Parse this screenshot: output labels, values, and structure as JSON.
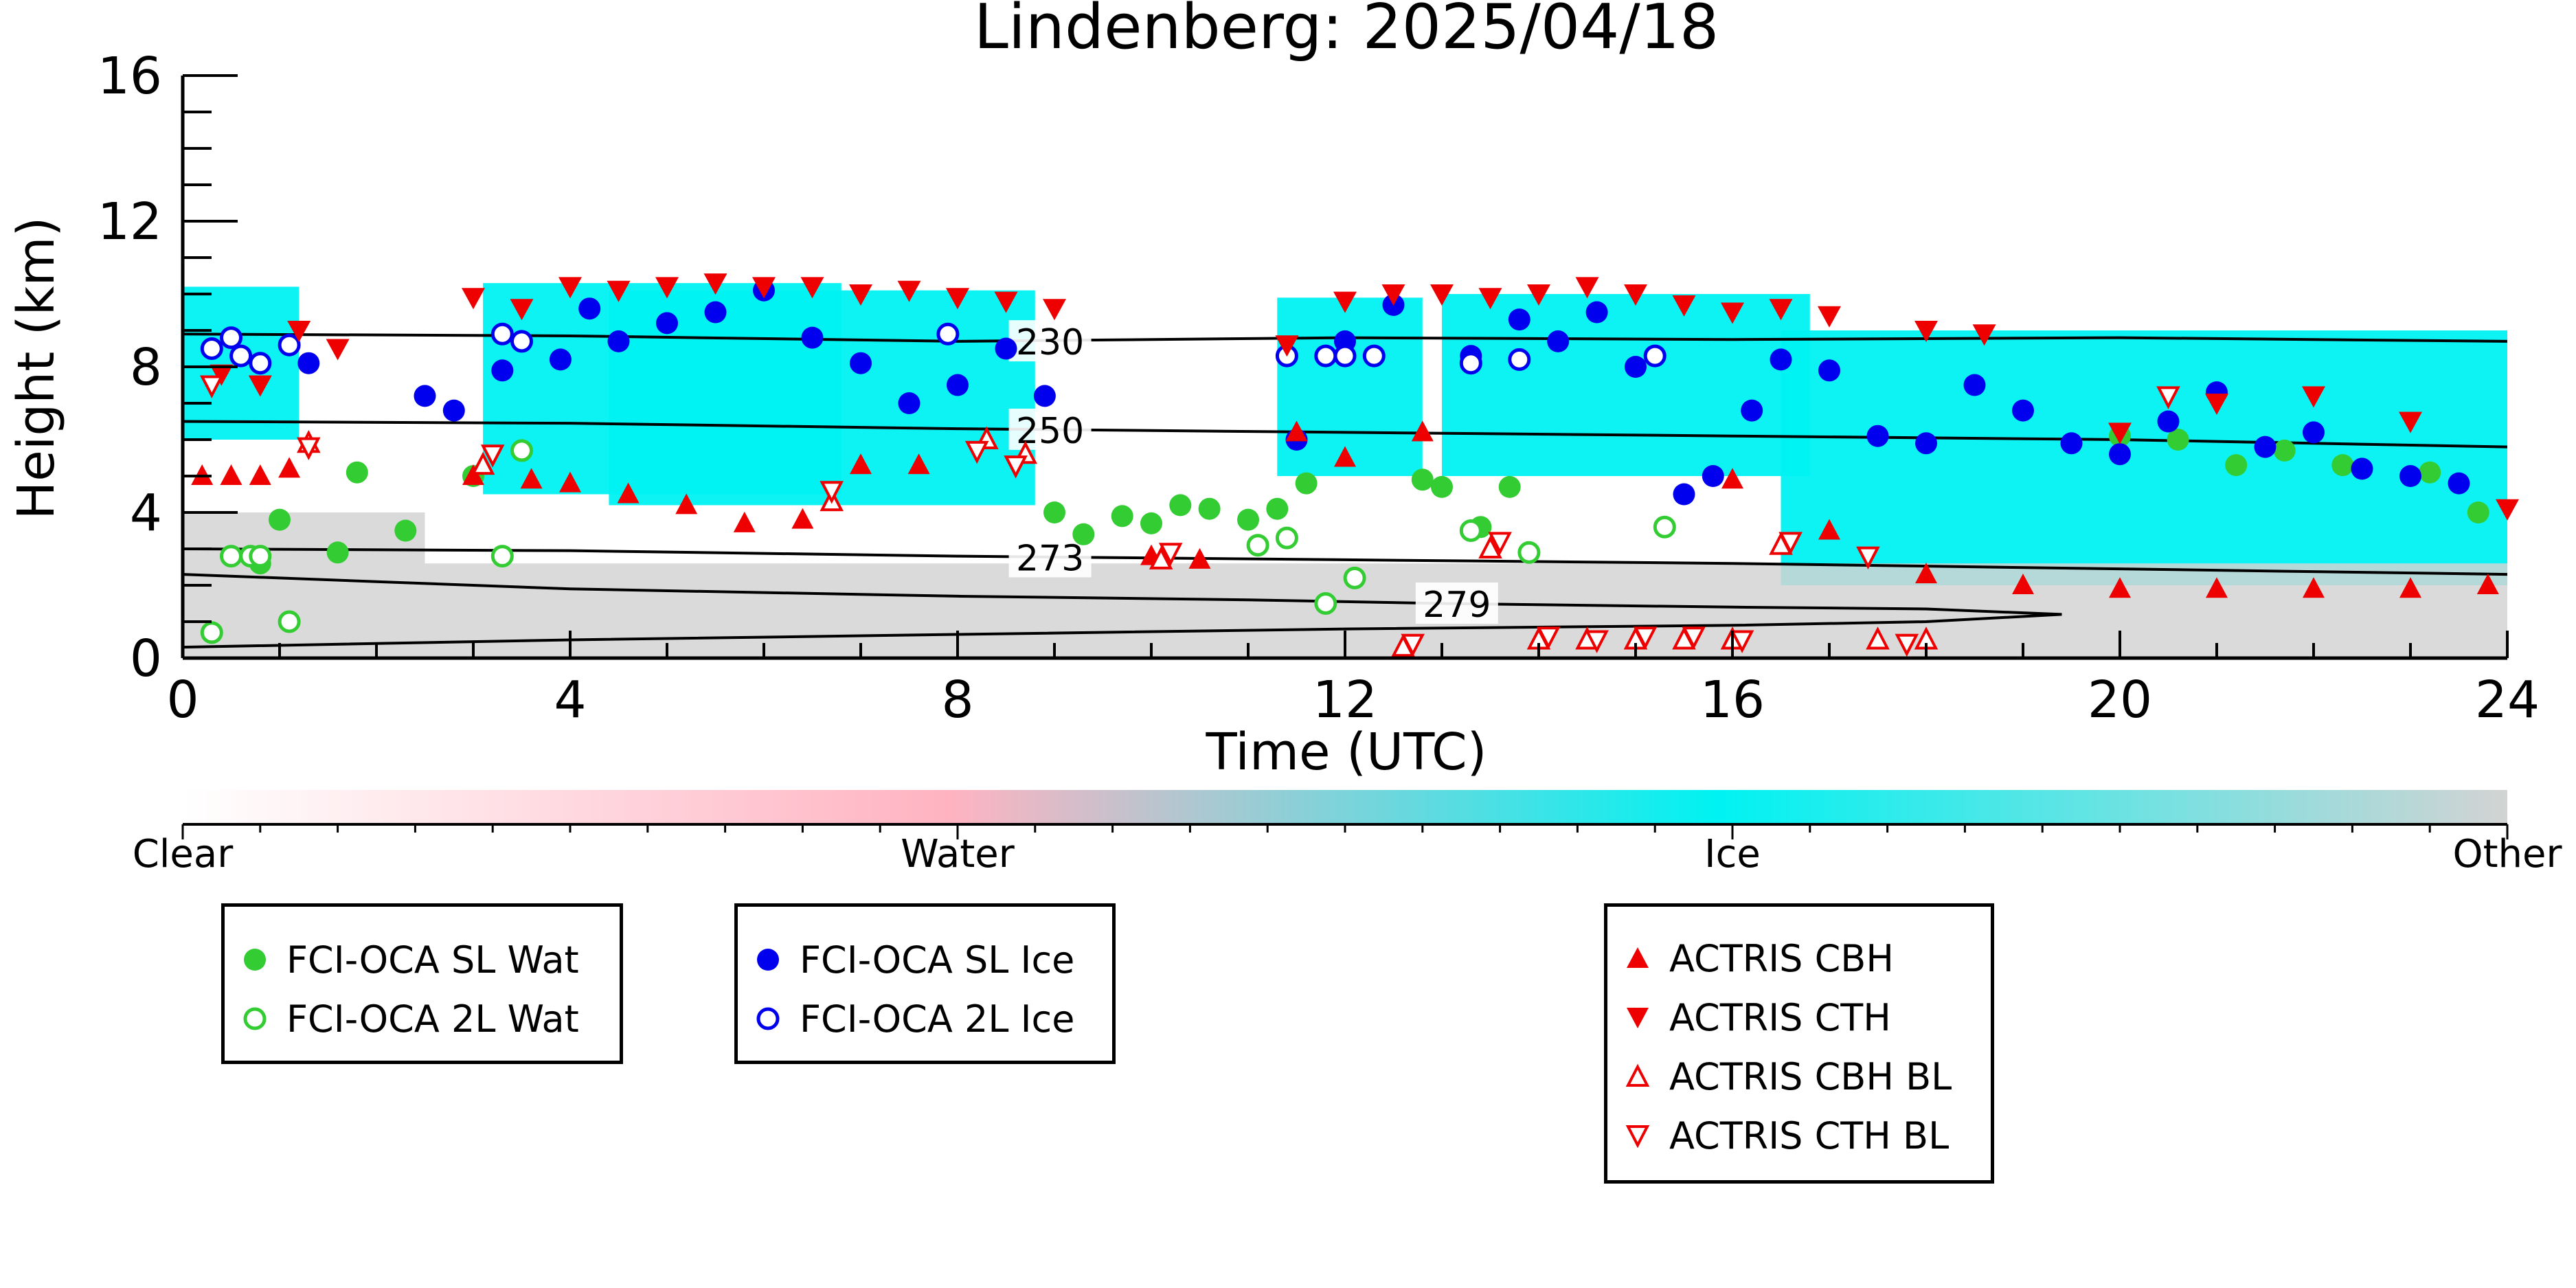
{
  "chart_data": {
    "type": "scatter",
    "title": "Lindenberg: 2025/04/18",
    "xlabel": "Time (UTC)",
    "ylabel": "Height (km)",
    "xlim": [
      0,
      24
    ],
    "ylim": [
      0,
      16
    ],
    "xticks": [
      0,
      4,
      8,
      12,
      16,
      20,
      24
    ],
    "yticks": [
      0,
      4,
      8,
      12,
      16
    ],
    "colorbar": {
      "labels": [
        "Clear",
        "Water",
        "Ice",
        "Other"
      ],
      "colors": [
        "#ffffff",
        "#ffb3c1",
        "#00f2f2",
        "#d3d3d3"
      ]
    },
    "temperature_contours": [
      {
        "label": "230",
        "x": [
          0,
          4,
          8,
          12,
          16,
          20,
          24
        ],
        "y": [
          8.9,
          8.85,
          8.7,
          8.8,
          8.75,
          8.8,
          8.7
        ]
      },
      {
        "label": "250",
        "x": [
          0,
          4,
          8,
          12,
          16,
          20,
          24
        ],
        "y": [
          6.5,
          6.45,
          6.3,
          6.2,
          6.1,
          6.0,
          5.8
        ]
      },
      {
        "label": "273",
        "x": [
          0,
          4,
          8,
          12,
          16,
          20,
          24
        ],
        "y": [
          3.0,
          2.95,
          2.8,
          2.7,
          2.6,
          2.45,
          2.3
        ]
      },
      {
        "label": "279",
        "x": [
          0,
          2,
          4,
          8,
          11,
          13,
          16,
          18,
          19.4,
          18,
          16,
          12,
          8,
          4,
          0
        ],
        "y": [
          2.3,
          2.1,
          1.9,
          1.7,
          1.6,
          1.5,
          1.4,
          1.35,
          1.2,
          1.0,
          0.9,
          0.8,
          0.65,
          0.5,
          0.3
        ]
      }
    ],
    "cloud_regions": [
      {
        "type": "Ice",
        "x": [
          0.0,
          1.2
        ],
        "y": [
          6.0,
          10.2
        ]
      },
      {
        "type": "Ice",
        "x": [
          3.1,
          6.8
        ],
        "y": [
          4.5,
          10.3
        ]
      },
      {
        "type": "Ice",
        "x": [
          4.4,
          8.8
        ],
        "y": [
          4.2,
          10.1
        ]
      },
      {
        "type": "Ice",
        "x": [
          11.3,
          12.8
        ],
        "y": [
          5.0,
          9.9
        ]
      },
      {
        "type": "Ice",
        "x": [
          13.0,
          16.8
        ],
        "y": [
          5.0,
          10.0
        ]
      },
      {
        "type": "Ice",
        "x": [
          16.5,
          24.0
        ],
        "y": [
          2.0,
          9.0
        ]
      },
      {
        "type": "Other",
        "x": [
          0.0,
          2.5
        ],
        "y": [
          0.0,
          4.0
        ]
      },
      {
        "type": "Other",
        "x": [
          2.5,
          24.0
        ],
        "y": [
          0.0,
          2.6
        ]
      }
    ],
    "series": [
      {
        "name": "FCI-OCA SL Wat",
        "color": "#33cc33",
        "marker": "filled-circle",
        "x": [
          0.8,
          1.0,
          1.6,
          1.8,
          2.3,
          3.0,
          9.0,
          9.3,
          9.7,
          10.0,
          10.3,
          10.6,
          11.0,
          11.3,
          11.6,
          12.8,
          13.0,
          13.4,
          13.7,
          20.0,
          20.6,
          21.2,
          21.7,
          22.3,
          23.2,
          23.7
        ],
        "y": [
          2.6,
          3.8,
          2.9,
          5.1,
          3.5,
          5.0,
          4.0,
          3.4,
          3.9,
          3.7,
          4.2,
          4.1,
          3.8,
          4.1,
          4.8,
          4.9,
          4.7,
          3.6,
          4.7,
          6.1,
          6.0,
          5.3,
          5.7,
          5.3,
          5.1,
          4.0
        ]
      },
      {
        "name": "FCI-OCA 2L Wat",
        "color": "#33cc33",
        "marker": "open-circle",
        "x": [
          0.3,
          0.5,
          0.7,
          0.8,
          1.1,
          3.3,
          3.5,
          11.1,
          11.4,
          11.8,
          12.1,
          13.3,
          13.9,
          15.3
        ],
        "y": [
          0.7,
          2.8,
          2.8,
          2.8,
          1.0,
          2.8,
          5.7,
          3.1,
          3.3,
          1.5,
          2.2,
          3.5,
          2.9,
          3.6
        ]
      },
      {
        "name": "FCI-OCA SL Ice",
        "color": "#0000ee",
        "marker": "filled-circle",
        "x": [
          1.3,
          2.5,
          2.8,
          3.3,
          3.9,
          4.2,
          4.5,
          5.0,
          5.5,
          6.0,
          6.5,
          7.0,
          7.5,
          8.0,
          8.5,
          8.9,
          11.5,
          12.0,
          12.5,
          13.3,
          13.8,
          14.2,
          14.6,
          15.0,
          15.5,
          15.8,
          16.2,
          16.5,
          17.0,
          17.5,
          18.0,
          18.5,
          19.0,
          19.5,
          20.0,
          20.5,
          21.0,
          21.5,
          22.0,
          22.5,
          23.0,
          23.5
        ],
        "y": [
          8.1,
          7.2,
          6.8,
          7.9,
          8.2,
          9.6,
          8.7,
          9.2,
          9.5,
          10.1,
          8.8,
          8.1,
          7.0,
          7.5,
          8.5,
          7.2,
          6.0,
          8.7,
          9.7,
          8.3,
          9.3,
          8.7,
          9.5,
          8.0,
          4.5,
          5.0,
          6.8,
          8.2,
          7.9,
          6.1,
          5.9,
          7.5,
          6.8,
          5.9,
          5.6,
          6.5,
          7.3,
          5.8,
          6.2,
          5.2,
          5.0,
          4.8
        ]
      },
      {
        "name": "FCI-OCA 2L Ice",
        "color": "#0000ee",
        "marker": "open-circle",
        "x": [
          0.3,
          0.5,
          0.6,
          0.8,
          1.1,
          3.3,
          3.5,
          7.9,
          11.4,
          11.8,
          12.0,
          12.3,
          13.3,
          13.8,
          15.2
        ],
        "y": [
          8.5,
          8.8,
          8.3,
          8.1,
          8.6,
          8.9,
          8.7,
          8.9,
          8.3,
          8.3,
          8.3,
          8.3,
          8.1,
          8.2,
          8.3
        ]
      },
      {
        "name": "ACTRIS CBH",
        "color": "#ee0000",
        "marker": "filled-up-triangle",
        "x": [
          0.2,
          0.5,
          0.8,
          1.1,
          3.0,
          3.6,
          4.0,
          4.6,
          5.2,
          5.8,
          6.4,
          7.0,
          7.6,
          10.0,
          10.5,
          11.5,
          12.0,
          12.8,
          16.0,
          17.0,
          18.0,
          19.0,
          20.0,
          21.0,
          22.0,
          23.0,
          23.8
        ],
        "y": [
          5.0,
          5.0,
          5.0,
          5.2,
          5.0,
          4.9,
          4.8,
          4.5,
          4.2,
          3.7,
          3.8,
          5.3,
          5.3,
          2.8,
          2.7,
          6.2,
          5.5,
          6.2,
          4.9,
          3.5,
          2.3,
          2.0,
          1.9,
          1.9,
          1.9,
          1.9,
          2.0
        ]
      },
      {
        "name": "ACTRIS CTH",
        "color": "#ee0000",
        "marker": "filled-down-triangle",
        "x": [
          0.4,
          0.8,
          1.2,
          1.6,
          3.0,
          3.5,
          4.0,
          4.5,
          5.0,
          5.5,
          6.0,
          6.5,
          7.0,
          7.5,
          8.0,
          8.5,
          9.0,
          11.4,
          12.0,
          12.5,
          13.0,
          13.5,
          14.0,
          14.5,
          15.0,
          15.5,
          16.0,
          16.5,
          17.0,
          18.0,
          18.6,
          20.0,
          21.0,
          22.0,
          23.0,
          24.0
        ],
        "y": [
          7.8,
          7.5,
          9.0,
          8.5,
          9.9,
          9.6,
          10.2,
          10.1,
          10.2,
          10.3,
          10.2,
          10.2,
          10.0,
          10.1,
          9.9,
          9.8,
          9.6,
          8.6,
          9.8,
          10.0,
          10.0,
          9.9,
          10.0,
          10.2,
          10.0,
          9.7,
          9.5,
          9.6,
          9.4,
          9.0,
          8.9,
          6.2,
          7.0,
          7.2,
          6.5,
          4.1
        ]
      },
      {
        "name": "ACTRIS CBH BL",
        "color": "#ee0000",
        "marker": "open-up-triangle",
        "x": [
          1.3,
          3.1,
          6.7,
          8.3,
          8.7,
          10.1,
          12.6,
          13.5,
          14.0,
          14.5,
          15.0,
          15.5,
          16.0,
          16.5,
          17.5,
          18.0
        ],
        "y": [
          5.9,
          5.3,
          4.3,
          6.0,
          5.6,
          2.7,
          0.3,
          3.0,
          0.5,
          0.5,
          0.5,
          0.5,
          0.5,
          3.1,
          0.5,
          0.5
        ]
      },
      {
        "name": "ACTRIS CTH BL",
        "color": "#ee0000",
        "marker": "open-down-triangle",
        "x": [
          0.3,
          1.3,
          3.2,
          6.7,
          8.2,
          8.6,
          10.2,
          12.7,
          13.6,
          14.1,
          14.6,
          15.1,
          15.6,
          16.1,
          16.6,
          17.4,
          17.8,
          20.5
        ],
        "y": [
          7.5,
          5.8,
          5.6,
          4.6,
          5.7,
          5.3,
          2.9,
          0.4,
          3.2,
          0.6,
          0.5,
          0.6,
          0.6,
          0.5,
          3.2,
          2.8,
          0.4,
          7.2
        ]
      }
    ]
  }
}
